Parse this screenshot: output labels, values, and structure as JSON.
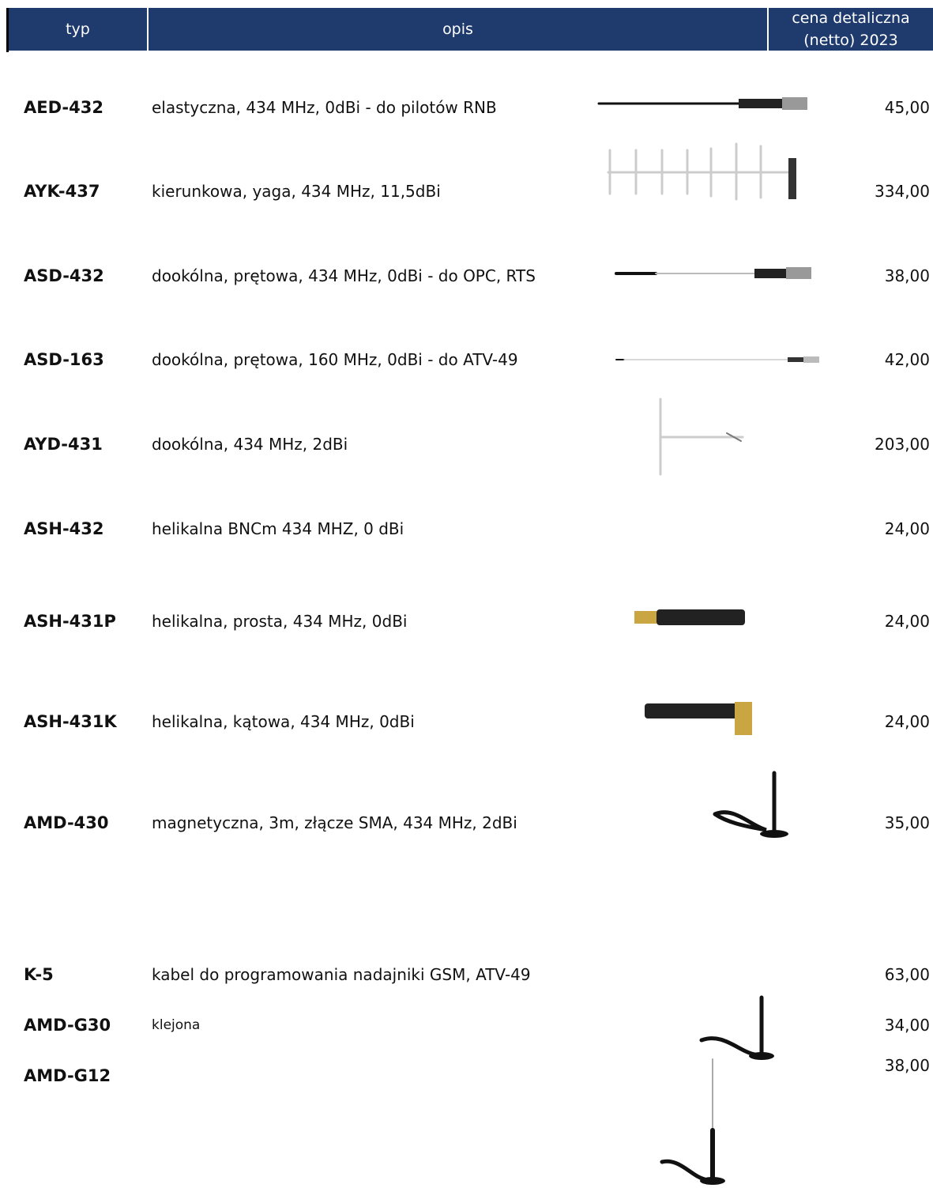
{
  "header": {
    "typ": "typ",
    "opis": "opis",
    "cena": [
      "cena detaliczna",
      "(netto) 2023"
    ]
  },
  "table": {
    "rows": [
      {
        "typ": "AED-432",
        "opis": "elastyczna, 434 MHz, 0dBi - do pilotów RNB",
        "cena": "45,00"
      },
      {
        "typ": "AYK-437",
        "opis": "kierunkowa, yaga, 434 MHz, 11,5dBi",
        "cena": "334,00"
      },
      {
        "typ": "ASD-432",
        "opis": "dookólna, prętowa, 434 MHz, 0dBi - do OPC, RTS",
        "cena": "38,00"
      },
      {
        "typ": "ASD-163",
        "opis": "dookólna, prętowa, 160 MHz, 0dBi - do ATV-49",
        "cena": "42,00"
      },
      {
        "typ": "AYD-431",
        "opis": "dookólna, 434 MHz, 2dBi",
        "cena": "203,00"
      },
      {
        "typ": "ASH-432",
        "opis": "helikalna BNCm 434 MHZ, 0 dBi",
        "cena": "24,00"
      },
      {
        "typ": "ASH-431P",
        "opis": "helikalna, prosta, 434 MHz, 0dBi",
        "cena": "24,00"
      },
      {
        "typ": "ASH-431K",
        "opis": "helikalna, kątowa, 434 MHz, 0dBi",
        "cena": "24,00"
      },
      {
        "typ": "AMD-430",
        "opis": "magnetyczna, 3m, złącze SMA, 434 MHz, 2dBi",
        "cena": "35,00"
      },
      {
        "typ": "K-5",
        "opis": "kabel do programowania nadajniki GSM, ATV-49",
        "cena": "63,00"
      },
      {
        "typ": "AMD-G30",
        "opis": "klejona",
        "cena": "34,00"
      },
      {
        "typ": "AMD-G12",
        "cena": "38,00"
      }
    ]
  }
}
